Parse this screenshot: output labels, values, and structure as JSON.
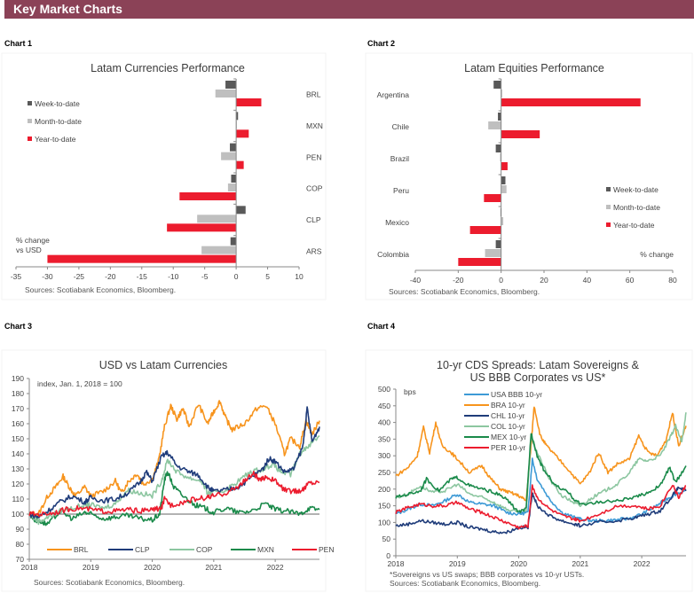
{
  "header": {
    "title": "Key Market Charts"
  },
  "labels": {
    "chart1": "Chart 1",
    "chart2": "Chart 2",
    "chart3": "Chart 3",
    "chart4": "Chart 4"
  },
  "colors": {
    "banner": "#8b4257",
    "wtd": "#595959",
    "mtd": "#bfbfbf",
    "ytd": "#ec1c2e"
  },
  "chart_data": [
    {
      "type": "bar",
      "orientation": "horizontal",
      "title": "Latam Currencies Performance",
      "categories": [
        "BRL",
        "MXN",
        "PEN",
        "COP",
        "CLP",
        "ARS"
      ],
      "series": [
        {
          "name": "Week-to-date",
          "color": "#595959",
          "values": [
            -1.7,
            0.3,
            -1.0,
            -0.8,
            1.5,
            -0.9
          ]
        },
        {
          "name": "Month-to-date",
          "color": "#bfbfbf",
          "values": [
            -3.3,
            0.0,
            -2.4,
            -1.3,
            -6.2,
            -5.5
          ]
        },
        {
          "name": "Year-to-date",
          "color": "#ec1c2e",
          "values": [
            4.0,
            2.0,
            1.2,
            -9.0,
            -11.0,
            -30.0
          ]
        }
      ],
      "xlim": [
        -35,
        10
      ],
      "xticks": [
        -35,
        -30,
        -25,
        -20,
        -15,
        -10,
        -5,
        0,
        5,
        10
      ],
      "annotation": "% change vs USD",
      "annotation_lines": [
        "% change",
        "vs USD"
      ],
      "legend": "left",
      "source": "Sources: Scotiabank Economics, Bloomberg."
    },
    {
      "type": "bar",
      "orientation": "horizontal",
      "title": "Latam Equities Performance",
      "categories": [
        "Argentina",
        "Chile",
        "Brazil",
        "Peru",
        "Mexico",
        "Colombia"
      ],
      "series": [
        {
          "name": "Week-to-date",
          "color": "#595959",
          "values": [
            -3.5,
            -1.5,
            -2.5,
            2.0,
            -0.3,
            -2.5
          ]
        },
        {
          "name": "Month-to-date",
          "color": "#bfbfbf",
          "values": [
            0.5,
            -6.0,
            -0.5,
            2.5,
            1.0,
            -7.5
          ]
        },
        {
          "name": "Year-to-date",
          "color": "#ec1c2e",
          "values": [
            65.0,
            18.0,
            3.0,
            -8.0,
            -14.5,
            -20.0
          ]
        }
      ],
      "xlim": [
        -40,
        80
      ],
      "xticks": [
        -40,
        -20,
        0,
        20,
        40,
        60,
        80
      ],
      "annotation": "% change",
      "legend": "right",
      "source": "Sources: Scotiabank Economics, Bloomberg."
    },
    {
      "type": "line",
      "title": "USD vs Latam Currencies",
      "annotation": "index, Jan. 1, 2018 = 100",
      "ylim": [
        70,
        190
      ],
      "yticks": [
        70,
        80,
        90,
        100,
        110,
        120,
        130,
        140,
        150,
        160,
        170,
        180,
        190
      ],
      "xlim": [
        2018.0,
        2022.72
      ],
      "xticks": [
        "2018",
        "2019",
        "2020",
        "2021",
        "2022"
      ],
      "reference_line": 100,
      "legend": "bottom",
      "series": [
        {
          "name": "BRL",
          "color": "#f7941d",
          "x": [
            2018.0,
            2018.15,
            2018.3,
            2018.45,
            2018.55,
            2018.65,
            2018.75,
            2018.9,
            2019.0,
            2019.2,
            2019.4,
            2019.5,
            2019.6,
            2019.75,
            2019.85,
            2020.0,
            2020.1,
            2020.2,
            2020.3,
            2020.4,
            2020.5,
            2020.6,
            2020.75,
            2020.9,
            2021.0,
            2021.1,
            2021.2,
            2021.3,
            2021.5,
            2021.7,
            2021.85,
            2022.0,
            2022.15,
            2022.25,
            2022.4,
            2022.5,
            2022.6,
            2022.72
          ],
          "y": [
            100,
            100,
            112,
            119,
            125,
            118,
            112,
            118,
            112,
            115,
            122,
            114,
            121,
            127,
            120,
            123,
            135,
            158,
            172,
            163,
            170,
            158,
            173,
            160,
            168,
            175,
            163,
            156,
            160,
            170,
            172,
            160,
            140,
            150,
            145,
            162,
            153,
            162
          ]
        },
        {
          "name": "CLP",
          "color": "#1f3c7a",
          "x": [
            2018.0,
            2018.15,
            2018.3,
            2018.5,
            2018.7,
            2018.9,
            2019.0,
            2019.2,
            2019.4,
            2019.6,
            2019.8,
            2019.9,
            2020.0,
            2020.15,
            2020.25,
            2020.4,
            2020.6,
            2020.75,
            2020.9,
            2021.0,
            2021.2,
            2021.4,
            2021.6,
            2021.8,
            2021.9,
            2022.0,
            2022.15,
            2022.3,
            2022.45,
            2022.52,
            2022.6,
            2022.72
          ],
          "y": [
            100,
            98,
            102,
            108,
            112,
            108,
            111,
            109,
            110,
            114,
            121,
            128,
            122,
            138,
            141,
            132,
            128,
            126,
            118,
            115,
            116,
            118,
            124,
            130,
            137,
            135,
            128,
            130,
            145,
            170,
            148,
            158
          ]
        },
        {
          "name": "COP",
          "color": "#8cc6a0",
          "x": [
            2018.0,
            2018.15,
            2018.3,
            2018.5,
            2018.7,
            2018.9,
            2019.0,
            2019.2,
            2019.4,
            2019.6,
            2019.8,
            2020.0,
            2020.15,
            2020.25,
            2020.4,
            2020.6,
            2020.8,
            2020.9,
            2021.0,
            2021.2,
            2021.4,
            2021.6,
            2021.8,
            2021.95,
            2022.1,
            2022.25,
            2022.4,
            2022.55,
            2022.72
          ],
          "y": [
            100,
            95,
            98,
            102,
            104,
            106,
            106,
            104,
            107,
            116,
            114,
            112,
            122,
            136,
            128,
            124,
            122,
            114,
            114,
            116,
            122,
            128,
            130,
            133,
            128,
            126,
            140,
            146,
            152
          ]
        },
        {
          "name": "MXN",
          "color": "#1a8a4a",
          "x": [
            2018.0,
            2018.1,
            2018.2,
            2018.3,
            2018.5,
            2018.7,
            2018.9,
            2019.0,
            2019.2,
            2019.4,
            2019.6,
            2019.8,
            2020.0,
            2020.12,
            2020.2,
            2020.25,
            2020.35,
            2020.5,
            2020.7,
            2020.85,
            2021.0,
            2021.2,
            2021.4,
            2021.6,
            2021.85,
            2022.0,
            2022.2,
            2022.4,
            2022.55,
            2022.72
          ],
          "y": [
            100,
            96,
            95,
            93,
            102,
            97,
            101,
            100,
            97,
            98,
            99,
            97,
            96,
            100,
            123,
            128,
            118,
            112,
            106,
            104,
            101,
            104,
            101,
            102,
            107,
            103,
            102,
            100,
            104,
            103
          ]
        },
        {
          "name": "PEN",
          "color": "#ec1c2e",
          "x": [
            2018.0,
            2018.2,
            2018.4,
            2018.6,
            2018.8,
            2019.0,
            2019.2,
            2019.4,
            2019.6,
            2019.8,
            2020.0,
            2020.15,
            2020.2,
            2020.3,
            2020.5,
            2020.7,
            2020.9,
            2021.0,
            2021.2,
            2021.35,
            2021.5,
            2021.65,
            2021.75,
            2021.85,
            2022.0,
            2022.15,
            2022.3,
            2022.45,
            2022.55,
            2022.72
          ],
          "y": [
            100,
            100,
            101,
            103,
            104,
            103,
            102,
            102,
            103,
            102,
            103,
            104,
            110,
            106,
            108,
            110,
            111,
            112,
            114,
            117,
            122,
            127,
            122,
            125,
            122,
            116,
            115,
            116,
            121,
            121
          ]
        }
      ],
      "source": "Sources: Scotiabank Economics, Bloomberg."
    },
    {
      "type": "line",
      "title": "10-yr CDS Spreads: Latam Sovereigns & US BBB Corporates vs US*",
      "title_lines": [
        "10-yr CDS Spreads: Latam Sovereigns &",
        "US BBB Corporates vs US*"
      ],
      "annotation": "bps",
      "ylim": [
        0,
        500
      ],
      "yticks": [
        0,
        50,
        100,
        150,
        200,
        250,
        300,
        350,
        400,
        450,
        500
      ],
      "xlim": [
        2018.0,
        2022.72
      ],
      "xticks": [
        "2018",
        "2019",
        "2020",
        "2021",
        "2022"
      ],
      "legend": "top-left",
      "series": [
        {
          "name": "USA BBB 10-yr",
          "color": "#3d9ad6",
          "x": [
            2018.0,
            2018.2,
            2018.4,
            2018.6,
            2018.8,
            2019.0,
            2019.2,
            2019.4,
            2019.6,
            2019.8,
            2020.0,
            2020.15,
            2020.22,
            2020.3,
            2020.5,
            2020.7,
            2020.9,
            2021.0,
            2021.2,
            2021.4,
            2021.6,
            2021.8,
            2022.0,
            2022.2,
            2022.4,
            2022.55,
            2022.72
          ],
          "y": [
            125,
            140,
            155,
            150,
            165,
            185,
            160,
            155,
            150,
            130,
            125,
            130,
            290,
            230,
            170,
            130,
            115,
            110,
            105,
            105,
            108,
            112,
            125,
            145,
            170,
            185,
            195
          ]
        },
        {
          "name": "BRA 10-yr",
          "color": "#f7941d",
          "x": [
            2018.0,
            2018.2,
            2018.35,
            2018.45,
            2018.55,
            2018.65,
            2018.75,
            2018.9,
            2019.0,
            2019.2,
            2019.4,
            2019.55,
            2019.7,
            2019.85,
            2020.0,
            2020.12,
            2020.2,
            2020.25,
            2020.35,
            2020.45,
            2020.6,
            2020.8,
            2021.0,
            2021.15,
            2021.3,
            2021.45,
            2021.6,
            2021.8,
            2021.95,
            2022.1,
            2022.25,
            2022.4,
            2022.5,
            2022.6,
            2022.72
          ],
          "y": [
            240,
            265,
            300,
            385,
            310,
            400,
            330,
            310,
            290,
            250,
            270,
            230,
            200,
            190,
            180,
            165,
            330,
            450,
            360,
            330,
            300,
            260,
            215,
            250,
            310,
            250,
            275,
            290,
            360,
            310,
            300,
            350,
            430,
            330,
            390
          ]
        },
        {
          "name": "CHL 10-yr",
          "color": "#1f3c7a",
          "x": [
            2018.0,
            2018.2,
            2018.4,
            2018.6,
            2018.8,
            2019.0,
            2019.2,
            2019.4,
            2019.6,
            2019.8,
            2020.0,
            2020.15,
            2020.22,
            2020.3,
            2020.5,
            2020.7,
            2020.9,
            2021.0,
            2021.3,
            2021.6,
            2021.9,
            2022.1,
            2022.3,
            2022.5,
            2022.6,
            2022.72
          ],
          "y": [
            90,
            95,
            105,
            100,
            95,
            100,
            85,
            80,
            72,
            70,
            85,
            85,
            190,
            150,
            120,
            105,
            95,
            90,
            100,
            105,
            115,
            125,
            135,
            180,
            205,
            195
          ]
        },
        {
          "name": "COL 10-yr",
          "color": "#8cc6a0",
          "x": [
            2018.0,
            2018.2,
            2018.4,
            2018.6,
            2018.8,
            2019.0,
            2019.2,
            2019.4,
            2019.6,
            2019.8,
            2020.0,
            2020.12,
            2020.2,
            2020.3,
            2020.5,
            2020.7,
            2020.9,
            2021.0,
            2021.2,
            2021.4,
            2021.6,
            2021.8,
            2021.95,
            2022.1,
            2022.3,
            2022.45,
            2022.55,
            2022.65,
            2022.72
          ],
          "y": [
            175,
            185,
            210,
            190,
            195,
            215,
            185,
            175,
            160,
            140,
            130,
            130,
            360,
            310,
            230,
            180,
            160,
            150,
            175,
            195,
            215,
            250,
            290,
            285,
            300,
            350,
            390,
            340,
            430
          ]
        },
        {
          "name": "MEX 10-yr",
          "color": "#1a8a4a",
          "x": [
            2018.0,
            2018.2,
            2018.4,
            2018.5,
            2018.7,
            2018.9,
            2019.0,
            2019.2,
            2019.4,
            2019.6,
            2019.8,
            2020.0,
            2020.12,
            2020.2,
            2020.3,
            2020.4,
            2020.6,
            2020.8,
            2020.9,
            2021.0,
            2021.3,
            2021.6,
            2021.9,
            2022.1,
            2022.3,
            2022.45,
            2022.55,
            2022.72
          ],
          "y": [
            175,
            185,
            195,
            230,
            195,
            230,
            235,
            210,
            200,
            190,
            170,
            130,
            140,
            370,
            300,
            260,
            210,
            190,
            170,
            155,
            160,
            165,
            175,
            190,
            210,
            265,
            220,
            270
          ]
        },
        {
          "name": "PER 10-yr",
          "color": "#ec1c2e",
          "x": [
            2018.0,
            2018.2,
            2018.4,
            2018.6,
            2018.8,
            2019.0,
            2019.2,
            2019.4,
            2019.6,
            2019.8,
            2020.0,
            2020.15,
            2020.22,
            2020.3,
            2020.5,
            2020.7,
            2020.9,
            2021.0,
            2021.3,
            2021.6,
            2021.9,
            2022.1,
            2022.3,
            2022.5,
            2022.6,
            2022.72
          ],
          "y": [
            130,
            145,
            155,
            150,
            150,
            160,
            140,
            130,
            115,
            100,
            85,
            90,
            210,
            175,
            140,
            120,
            110,
            105,
            125,
            150,
            150,
            140,
            150,
            215,
            175,
            210
          ]
        }
      ],
      "footnote": "*Sovereigns vs US swaps; BBB corporates vs 10-yr USTs.",
      "source": "Sources: Scotiabank Economics, Bloomberg."
    }
  ]
}
